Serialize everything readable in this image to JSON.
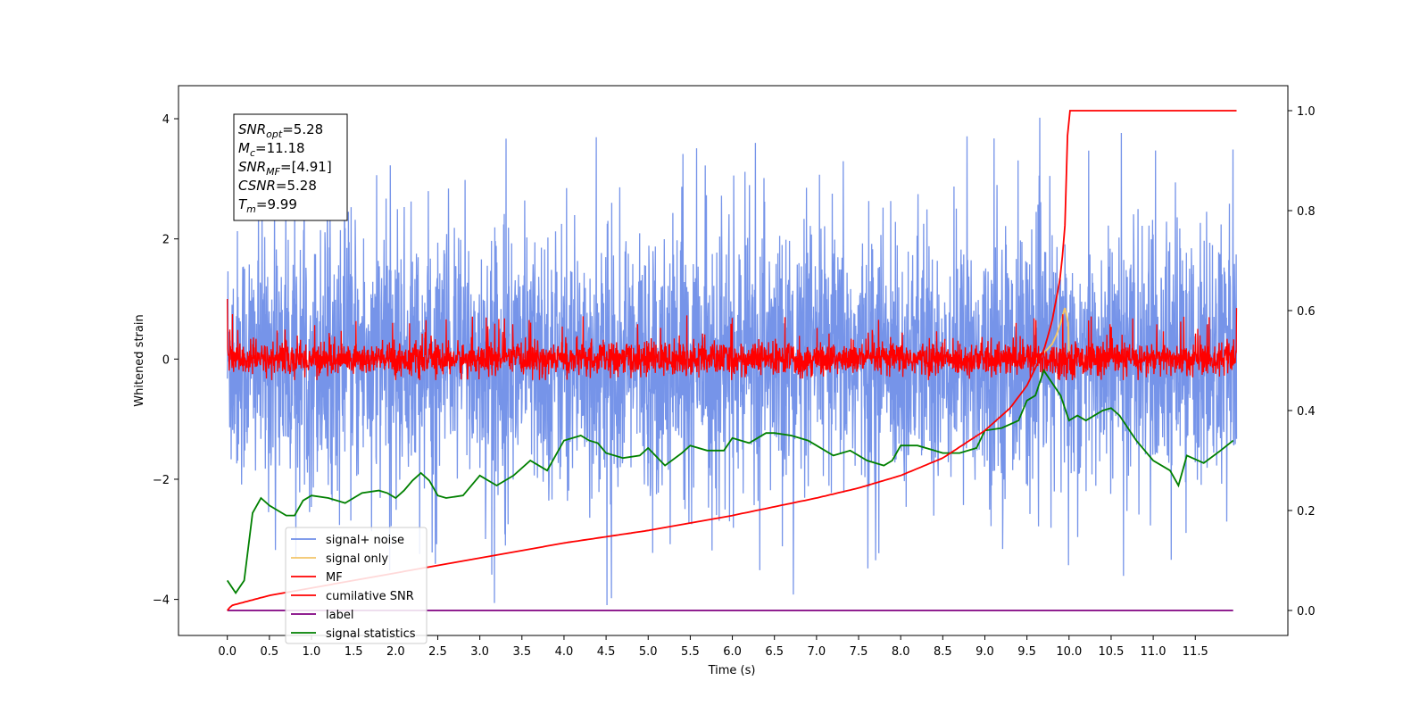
{
  "chart_data": {
    "type": "line",
    "xlabel": "Time (s)",
    "ylabel": "Whitened strain",
    "xlim": [
      -0.58,
      12.6
    ],
    "ylim": [
      -4.6,
      4.55
    ],
    "y2lim": [
      -0.05,
      1.05
    ],
    "x_ticks": [
      0.0,
      0.5,
      1.0,
      1.5,
      2.0,
      2.5,
      3.0,
      3.5,
      4.0,
      4.5,
      5.0,
      5.5,
      6.0,
      6.5,
      7.0,
      7.5,
      8.0,
      8.5,
      9.0,
      9.5,
      10.0,
      10.5,
      11.0,
      11.5
    ],
    "x_tick_labels": [
      "0.0",
      "0.5",
      "1.0",
      "1.5",
      "2.0",
      "2.5",
      "3.0",
      "3.5",
      "4.0",
      "4.5",
      "5.0",
      "5.5",
      "6.0",
      "6.5",
      "7.0",
      "7.5",
      "8.0",
      "8.5",
      "9.0",
      "9.5",
      "10.0",
      "10.5",
      "11.0",
      "11.5"
    ],
    "y_ticks": [
      -4,
      -2,
      0,
      2,
      4
    ],
    "y_tick_labels": [
      "−4",
      "−2",
      "0",
      "2",
      "4"
    ],
    "y2_ticks": [
      0.0,
      0.2,
      0.4,
      0.6,
      0.8,
      1.0
    ],
    "y2_tick_labels": [
      "0.0",
      "0.2",
      "0.4",
      "0.6",
      "0.8",
      "1.0"
    ],
    "grid": false,
    "legend_position": "bottom-left",
    "annotation": [
      {
        "symbol": "SNR",
        "sub": "opt",
        "value": "=5.28"
      },
      {
        "symbol": "M",
        "sub": "c",
        "value": "=11.18"
      },
      {
        "symbol": "SNR",
        "sub": "MF",
        "value": "=[4.91]"
      },
      {
        "symbol": "CSNR",
        "sub": "",
        "value": "=5.28"
      },
      {
        "symbol": "T",
        "sub": "m",
        "value": "=9.99"
      }
    ],
    "series": [
      {
        "name": "signal+ noise",
        "color": "#6f8ee8",
        "axis": "left",
        "x_range": [
          0,
          11.99
        ],
        "envelope": {
          "mean": 0,
          "core_band": [
            -2.2,
            2.2
          ],
          "peak_max": 4.15,
          "peak_min": -4.1
        }
      },
      {
        "name": "signal only",
        "color": "#f2c46a",
        "axis": "left",
        "x": [
          9.6,
          9.7,
          9.8,
          9.85,
          9.9,
          9.95,
          9.99,
          10.0
        ],
        "y": [
          0,
          0.1,
          0.25,
          0.4,
          0.6,
          0.85,
          0.6,
          0
        ]
      },
      {
        "name": "MF",
        "color": "#ff0000",
        "axis": "left",
        "x_range": [
          0,
          11.99
        ],
        "envelope": {
          "mean": 0,
          "core_band": [
            -0.3,
            0.3
          ],
          "peak_max": 0.85,
          "peak_min": -0.35,
          "start_value": 1.0,
          "end_value": 0.85
        }
      },
      {
        "name": "cumilative SNR",
        "color": "#ff0000",
        "axis": "right",
        "x": [
          0,
          0.05,
          0.5,
          1,
          2,
          3,
          4,
          5,
          6,
          7,
          7.5,
          8,
          8.5,
          9,
          9.3,
          9.5,
          9.7,
          9.8,
          9.9,
          9.95,
          9.99,
          10.5,
          11,
          11.5,
          11.99
        ],
        "y": [
          0.0,
          0.01,
          0.03,
          0.045,
          0.075,
          0.105,
          0.135,
          0.16,
          0.19,
          0.225,
          0.245,
          0.27,
          0.305,
          0.36,
          0.405,
          0.45,
          0.52,
          0.58,
          0.67,
          0.76,
          1.0,
          1.0,
          1.0,
          1.0,
          1.0
        ]
      },
      {
        "name": "label",
        "color": "#800080",
        "axis": "right",
        "x": [
          0,
          11.95
        ],
        "y": [
          0.0,
          0.0
        ]
      },
      {
        "name": "signal statistics",
        "color": "#008000",
        "axis": "right",
        "x": [
          0,
          0.1,
          0.2,
          0.3,
          0.4,
          0.5,
          0.6,
          0.7,
          0.8,
          0.9,
          1.0,
          1.2,
          1.4,
          1.5,
          1.6,
          1.8,
          1.9,
          2.0,
          2.1,
          2.2,
          2.3,
          2.4,
          2.5,
          2.6,
          2.8,
          3.0,
          3.2,
          3.4,
          3.6,
          3.8,
          4.0,
          4.2,
          4.3,
          4.4,
          4.5,
          4.7,
          4.9,
          5.0,
          5.2,
          5.4,
          5.5,
          5.7,
          5.9,
          6.0,
          6.2,
          6.4,
          6.5,
          6.7,
          6.9,
          7.0,
          7.2,
          7.4,
          7.6,
          7.8,
          7.9,
          8.0,
          8.2,
          8.4,
          8.5,
          8.7,
          8.9,
          9.0,
          9.2,
          9.4,
          9.5,
          9.6,
          9.7,
          9.9,
          10.0,
          10.1,
          10.2,
          10.4,
          10.5,
          10.6,
          10.8,
          11.0,
          11.2,
          11.3,
          11.4,
          11.6,
          11.8,
          11.95
        ],
        "y": [
          0.06,
          0.035,
          0.06,
          0.195,
          0.225,
          0.21,
          0.2,
          0.19,
          0.19,
          0.22,
          0.23,
          0.225,
          0.215,
          0.225,
          0.235,
          0.24,
          0.235,
          0.225,
          0.24,
          0.26,
          0.275,
          0.26,
          0.23,
          0.225,
          0.23,
          0.27,
          0.25,
          0.27,
          0.3,
          0.28,
          0.34,
          0.35,
          0.34,
          0.335,
          0.315,
          0.305,
          0.31,
          0.325,
          0.29,
          0.315,
          0.33,
          0.32,
          0.32,
          0.345,
          0.335,
          0.355,
          0.355,
          0.35,
          0.34,
          0.33,
          0.31,
          0.32,
          0.3,
          0.29,
          0.3,
          0.33,
          0.33,
          0.32,
          0.315,
          0.315,
          0.325,
          0.36,
          0.365,
          0.38,
          0.42,
          0.43,
          0.48,
          0.43,
          0.38,
          0.39,
          0.38,
          0.4,
          0.405,
          0.39,
          0.34,
          0.3,
          0.28,
          0.25,
          0.31,
          0.295,
          0.32,
          0.34
        ]
      }
    ]
  }
}
